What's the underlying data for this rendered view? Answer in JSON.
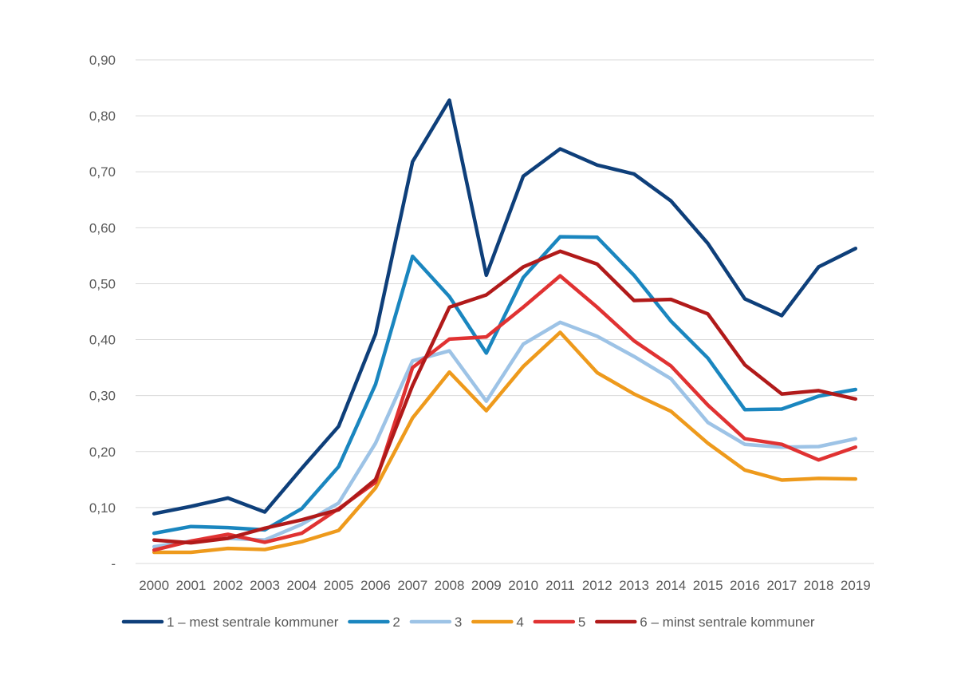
{
  "chart_data": {
    "type": "line",
    "title": "",
    "xlabel": "",
    "ylabel": "",
    "categories": [
      "2000",
      "2001",
      "2002",
      "2003",
      "2004",
      "2005",
      "2006",
      "2007",
      "2008",
      "2009",
      "2010",
      "2011",
      "2012",
      "2013",
      "2014",
      "2015",
      "2016",
      "2017",
      "2018",
      "2019"
    ],
    "ylim": [
      0,
      0.9
    ],
    "y_ticks": [
      {
        "value": 0,
        "label": "-"
      },
      {
        "value": 0.1,
        "label": "0,10"
      },
      {
        "value": 0.2,
        "label": "0,20"
      },
      {
        "value": 0.3,
        "label": "0,30"
      },
      {
        "value": 0.4,
        "label": "0,40"
      },
      {
        "value": 0.5,
        "label": "0,50"
      },
      {
        "value": 0.6,
        "label": "0,60"
      },
      {
        "value": 0.7,
        "label": "0,70"
      },
      {
        "value": 0.8,
        "label": "0,80"
      },
      {
        "value": 0.9,
        "label": "0,90"
      }
    ],
    "grid": true,
    "legend_position": "bottom",
    "series": [
      {
        "name": "1 – mest sentrale kommuner",
        "color": "#0e3f7a",
        "values": [
          0.089,
          0.102,
          0.117,
          0.092,
          0.17,
          0.245,
          0.41,
          0.718,
          0.828,
          0.515,
          0.692,
          0.741,
          0.712,
          0.696,
          0.648,
          0.572,
          0.473,
          0.443,
          0.53,
          0.563
        ]
      },
      {
        "name": "2",
        "color": "#1a86bf",
        "values": [
          0.054,
          0.066,
          0.064,
          0.06,
          0.098,
          0.173,
          0.32,
          0.549,
          0.477,
          0.376,
          0.511,
          0.584,
          0.583,
          0.515,
          0.433,
          0.367,
          0.275,
          0.276,
          0.299,
          0.311
        ]
      },
      {
        "name": "3",
        "color": "#9dc3e6",
        "values": [
          0.03,
          0.04,
          0.045,
          0.042,
          0.07,
          0.108,
          0.215,
          0.362,
          0.38,
          0.29,
          0.392,
          0.431,
          0.406,
          0.37,
          0.33,
          0.252,
          0.213,
          0.208,
          0.209,
          0.223
        ]
      },
      {
        "name": "4",
        "color": "#ee9a1c",
        "values": [
          0.02,
          0.02,
          0.027,
          0.025,
          0.039,
          0.059,
          0.135,
          0.26,
          0.342,
          0.273,
          0.352,
          0.413,
          0.341,
          0.303,
          0.272,
          0.215,
          0.167,
          0.149,
          0.152,
          0.151
        ]
      },
      {
        "name": "5",
        "color": "#e03232",
        "values": [
          0.024,
          0.04,
          0.052,
          0.038,
          0.054,
          0.098,
          0.145,
          0.35,
          0.401,
          0.405,
          0.458,
          0.514,
          0.458,
          0.398,
          0.353,
          0.283,
          0.223,
          0.213,
          0.185,
          0.208
        ]
      },
      {
        "name": "6 – minst sentrale kommuner",
        "color": "#b11a1a",
        "values": [
          0.042,
          0.037,
          0.045,
          0.063,
          0.078,
          0.096,
          0.15,
          0.318,
          0.458,
          0.48,
          0.53,
          0.558,
          0.535,
          0.47,
          0.472,
          0.446,
          0.355,
          0.303,
          0.309,
          0.294
        ]
      }
    ]
  }
}
